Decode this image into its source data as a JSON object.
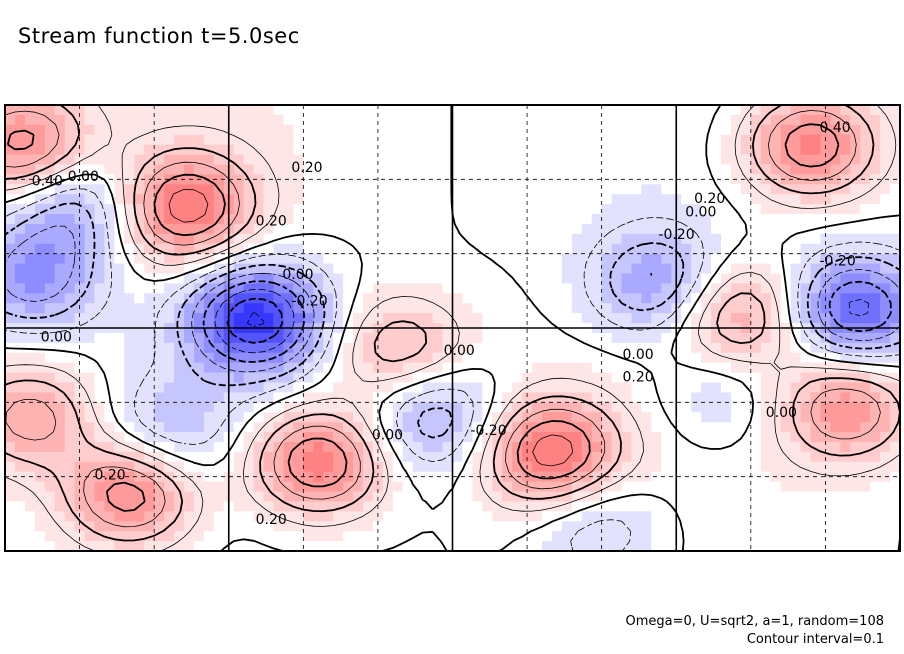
{
  "title": "Stream function t=5.0sec",
  "notes": {
    "params": "Omega=0, U=sqrt2, a=1, random=108",
    "interval": "Contour interval=0.1"
  },
  "colors": {
    "positive": "#e05050",
    "negative": "#3a3ae0",
    "background": "#ffffff",
    "frame": "#000000"
  },
  "chart_data": {
    "type": "heatmap",
    "variant": "filled-contour",
    "title": "Stream function t=5.0sec",
    "grid": "dashed",
    "contour_interval": 0.1,
    "contour_labels": [
      "0.40",
      "0.20",
      "0.00",
      "-0.20"
    ],
    "label_positions_note": "labels drawn inline on contour lines",
    "positive_features": [
      {
        "amplitude": 0.45,
        "cx": 0.02,
        "cy": 0.09
      },
      {
        "amplitude": 0.5,
        "cx": 0.9,
        "cy": 0.09
      },
      {
        "amplitude": 0.55,
        "cx": 0.2,
        "cy": 0.23
      },
      {
        "amplitude": 0.35,
        "cx": 0.03,
        "cy": 0.7
      },
      {
        "amplitude": 0.5,
        "cx": 0.14,
        "cy": 0.87
      },
      {
        "amplitude": 0.55,
        "cx": 0.35,
        "cy": 0.8
      },
      {
        "amplitude": 0.3,
        "cx": 0.44,
        "cy": 0.55
      },
      {
        "amplitude": 0.55,
        "cx": 0.61,
        "cy": 0.78
      },
      {
        "amplitude": 0.35,
        "cx": 0.82,
        "cy": 0.47
      },
      {
        "amplitude": 0.4,
        "cx": 0.94,
        "cy": 0.68
      }
    ],
    "negative_features": [
      {
        "amplitude": -0.7,
        "cx": 0.28,
        "cy": 0.48
      },
      {
        "amplitude": -0.3,
        "cx": 0.08,
        "cy": 0.23
      },
      {
        "amplitude": -0.35,
        "cx": 0.03,
        "cy": 0.39
      },
      {
        "amplitude": -0.3,
        "cx": 0.48,
        "cy": 0.7
      },
      {
        "amplitude": -0.35,
        "cx": 0.73,
        "cy": 0.4
      },
      {
        "amplitude": -0.55,
        "cx": 0.95,
        "cy": 0.46
      },
      {
        "amplitude": -0.2,
        "cx": 0.18,
        "cy": 0.73
      },
      {
        "amplitude": -0.2,
        "cx": 0.66,
        "cy": 0.94
      },
      {
        "amplitude": -0.15,
        "cx": 0.8,
        "cy": 0.65
      }
    ]
  }
}
